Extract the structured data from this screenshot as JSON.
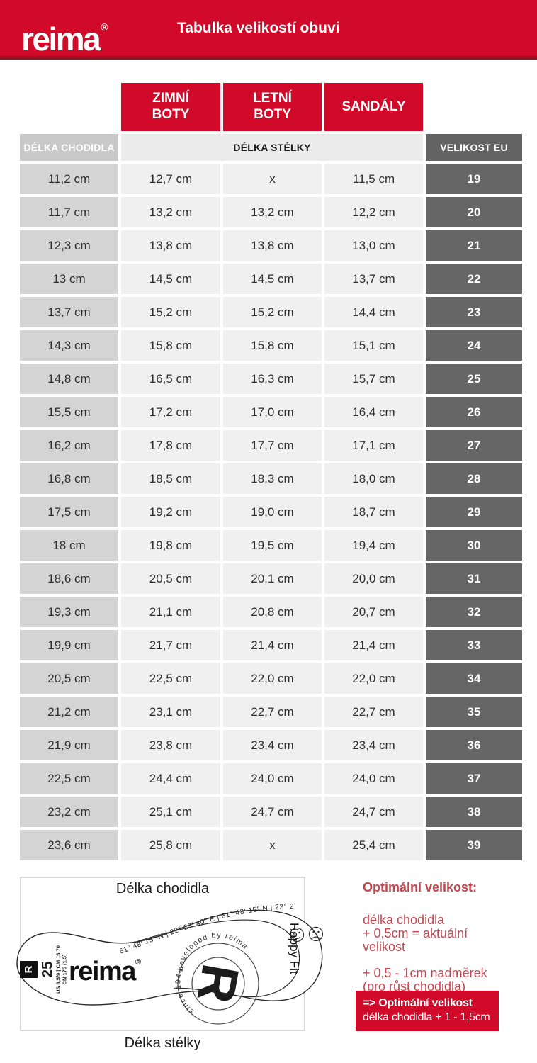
{
  "header": {
    "logo": "reima",
    "logo_mark": "®",
    "title": "Tabulka velikostí obuvi"
  },
  "table": {
    "shoe_type_headers": [
      "ZIMNÍ\nBOTY",
      "LETNÍ\nBOTY",
      "SANDÁLY"
    ],
    "subheaders": {
      "foot_length": "DÉLKA CHODIDLA",
      "insole_length": "DÉLKA STÉLKY",
      "eu_size": "VELIKOST EU"
    }
  },
  "chart_data": {
    "type": "table",
    "title": "Tabulka velikostí obuvi",
    "columns": [
      "DÉLKA CHODIDLA",
      "ZIMNÍ BOTY — DÉLKA STÉLKY",
      "LETNÍ BOTY — DÉLKA STÉLKY",
      "SANDÁLY — DÉLKA STÉLKY",
      "VELIKOST EU"
    ],
    "rows": [
      [
        "11,2 cm",
        "12,7 cm",
        "x",
        "11,5 cm",
        "19"
      ],
      [
        "11,7 cm",
        "13,2 cm",
        "13,2 cm",
        "12,2 cm",
        "20"
      ],
      [
        "12,3 cm",
        "13,8 cm",
        "13,8 cm",
        "13,0 cm",
        "21"
      ],
      [
        "13 cm",
        "14,5 cm",
        "14,5 cm",
        "13,7 cm",
        "22"
      ],
      [
        "13,7 cm",
        "15,2 cm",
        "15,2 cm",
        "14,4 cm",
        "23"
      ],
      [
        "14,3 cm",
        "15,8 cm",
        "15,8 cm",
        "15,1 cm",
        "24"
      ],
      [
        "14,8 cm",
        "16,5 cm",
        "16,3 cm",
        "15,7 cm",
        "25"
      ],
      [
        "15,5 cm",
        "17,2 cm",
        "17,0 cm",
        "16,4 cm",
        "26"
      ],
      [
        "16,2 cm",
        "17,8 cm",
        "17,7 cm",
        "17,1 cm",
        "27"
      ],
      [
        "16,8 cm",
        "18,5 cm",
        "18,3 cm",
        "18,0 cm",
        "28"
      ],
      [
        "17,5 cm",
        "19,2 cm",
        "19,0 cm",
        "18,7 cm",
        "29"
      ],
      [
        "18 cm",
        "19,8 cm",
        "19,5 cm",
        "19,4 cm",
        "30"
      ],
      [
        "18,6 cm",
        "20,5 cm",
        "20,1 cm",
        "20,0 cm",
        "31"
      ],
      [
        "19,3 cm",
        "21,1 cm",
        "20,8 cm",
        "20,7 cm",
        "32"
      ],
      [
        "19,9 cm",
        "21,7 cm",
        "21,4 cm",
        "21,4 cm",
        "33"
      ],
      [
        "20,5 cm",
        "22,5 cm",
        "22,0 cm",
        "22,0 cm",
        "34"
      ],
      [
        "21,2 cm",
        "23,1 cm",
        "22,7 cm",
        "22,7 cm",
        "35"
      ],
      [
        "21,9 cm",
        "23,8 cm",
        "23,4 cm",
        "23,4 cm",
        "36"
      ],
      [
        "22,5 cm",
        "24,4 cm",
        "24,0 cm",
        "24,0 cm",
        "37"
      ],
      [
        "23,2 cm",
        "25,1 cm",
        "24,7 cm",
        "24,7 cm",
        "38"
      ],
      [
        "23,6 cm",
        "25,8 cm",
        "x",
        "25,4 cm",
        "39"
      ]
    ]
  },
  "diagram": {
    "top_label": "Délka chodidla",
    "bottom_label": "Délka stélky",
    "insole": {
      "heel_mark": "R",
      "size": "25",
      "size_info_line1": "US 8,5/9 | CM 16,70",
      "size_info_line2": "CN 175 (1,5)",
      "brand": "reima",
      "brand_mark": "®",
      "coordinates": "61° 48' 15\" N  |  22° 23' 40\" E  |  61° 48' 15\" N  |  22° 23' 40\" E",
      "happy_fit": "Happy Fit",
      "stamp_top": "developed by reima",
      "stamp_bottom": "since 1944",
      "stamp_letter": "R"
    }
  },
  "tips": {
    "heading": "Optimální velikost:",
    "paragraph1": "délka chodidla\n+ 0,5cm = aktuální\nvelikost",
    "paragraph2": "+ 0,5 - 1cm nadměrek\n(pro růst chodidla)",
    "highlight_title": "=> Optimální velikost",
    "highlight_text": "délka chodidla + 1 - 1,5cm"
  },
  "colors": {
    "brand_red": "#d20a2a",
    "banner_edge_red": "#971322",
    "foot_col_bg": "#d4d4d4",
    "insole_col_bg": "#f0f0f0",
    "eu_col_bg": "#666666",
    "subheader_foot_bg": "#c9c9c9",
    "subheader_insole_bg": "#ececec",
    "subheader_eu_bg": "#636363",
    "tips_red": "#c2474f"
  }
}
